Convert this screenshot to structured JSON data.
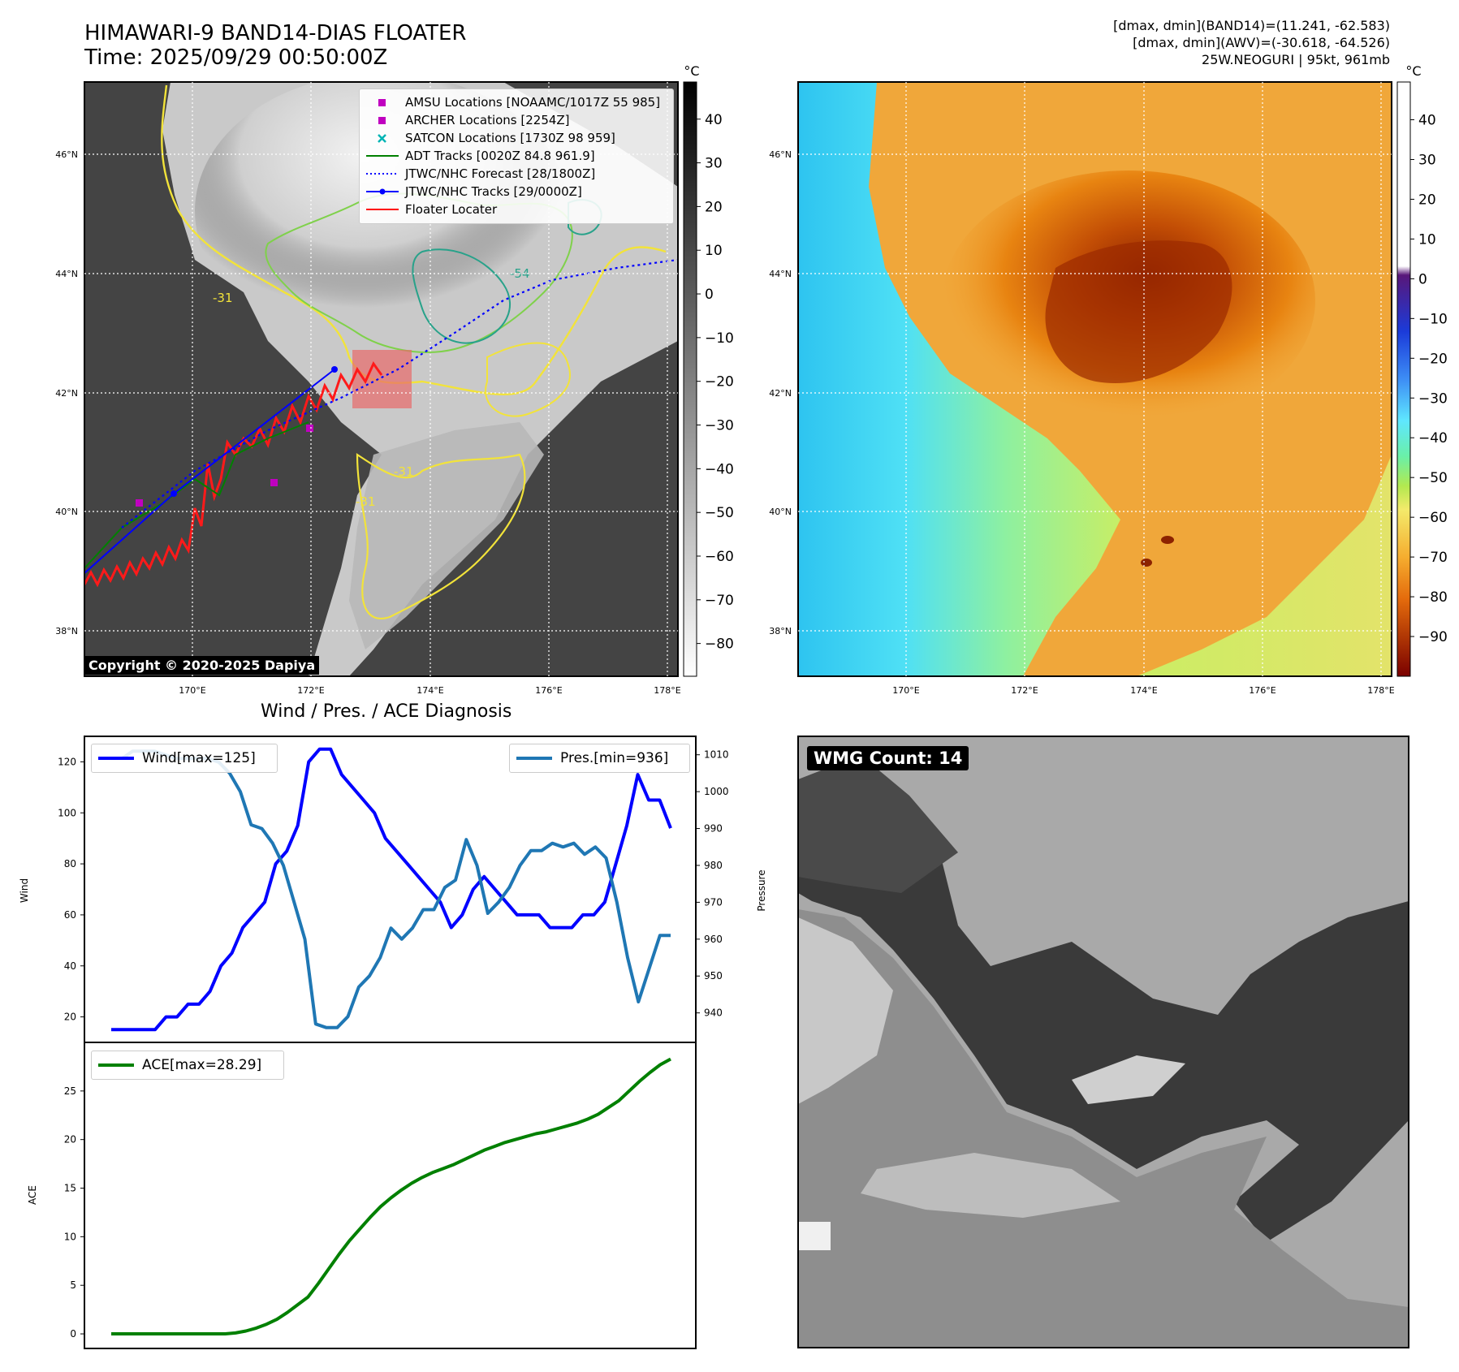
{
  "header": {
    "title_line1": "HIMAWARI-9 BAND14-DIAS FLOATER",
    "title_line2": "Time: 2025/09/29 00:50:00Z",
    "info_line1": "[dmax, dmin](BAND14)=(11.241, -62.583)",
    "info_line2": "[dmax, dmin](AWV)=(-30.618, -64.526)",
    "info_line3": "25W.NEOGURI | 95kt, 961mb"
  },
  "map": {
    "lat_labels": [
      "46°N",
      "44°N",
      "42°N",
      "40°N",
      "38°N"
    ],
    "lon_labels": [
      "170°E",
      "172°E",
      "174°E",
      "176°E",
      "178°E"
    ],
    "colorbar_unit": "°C",
    "contour_labels": [
      "-31",
      "-54",
      "-31",
      "-31"
    ],
    "copyright": "Copyright © 2020-2025 Dapiya"
  },
  "ir_colorbar": {
    "ticks": [
      "40",
      "30",
      "20",
      "10",
      "0",
      "−10",
      "−20",
      "−30",
      "−40",
      "−50",
      "−60",
      "−70",
      "−80"
    ]
  },
  "awv_colorbar": {
    "ticks": [
      "40",
      "30",
      "20",
      "10",
      "0",
      "−10",
      "−20",
      "−30",
      "−40",
      "−50",
      "−60",
      "−70",
      "−80",
      "−90"
    ],
    "colors": [
      "#ffffff",
      "#58177a",
      "#1b3bd9",
      "#3d8df5",
      "#5fe7ff",
      "#6af0a8",
      "#b3e94f",
      "#f4ea6b",
      "#f5ad2f",
      "#e46b0c",
      "#b33a05",
      "#7a0000"
    ]
  },
  "legend": {
    "items": [
      {
        "label": "AMSU Locations [NOAAMC/1017Z 55 985]",
        "color": "#c000c0",
        "marker": "square"
      },
      {
        "label": "ARCHER Locations [2254Z]",
        "color": "#c000c0",
        "marker": "square"
      },
      {
        "label": "SATCON Locations [1730Z 98 959]",
        "color": "#00b4b4",
        "marker": "x"
      },
      {
        "label": "ADT Tracks [0020Z 84.8 961.9]",
        "color": "#008000",
        "marker": "line"
      },
      {
        "label": "JTWC/NHC Forecast [28/1800Z]",
        "color": "#0000ff",
        "marker": "dotted"
      },
      {
        "label": "JTWC/NHC Tracks [29/0000Z]",
        "color": "#0000ff",
        "marker": "line-dot"
      },
      {
        "label": "Floater Locater",
        "color": "#ff0000",
        "marker": "line"
      }
    ]
  },
  "diagnosis": {
    "title": "Wind / Pres. / ACE Diagnosis",
    "wind_label": "Wind",
    "pres_label": "Pressure",
    "ace_label": "ACE",
    "wind_legend": "Wind[max=125]",
    "pres_legend": "Pres.[min=936]",
    "ace_legend": "ACE[max=28.29]",
    "wind_color": "#0000ff",
    "pres_color": "#1f77b4",
    "ace_color": "#008000"
  },
  "wmg": {
    "label": "WMG Count: 14"
  },
  "chart_data": [
    {
      "type": "line",
      "series": [
        {
          "name": "Wind[max=125]",
          "axis": "left",
          "values": [
            15,
            15,
            15,
            15,
            15,
            20,
            20,
            25,
            25,
            30,
            40,
            45,
            55,
            60,
            65,
            80,
            85,
            95,
            120,
            125,
            125,
            115,
            110,
            105,
            100,
            90,
            85,
            80,
            75,
            70,
            65,
            55,
            60,
            70,
            75,
            70,
            65,
            60,
            60,
            60,
            55,
            55,
            55,
            60,
            60,
            65,
            80,
            95,
            115,
            105,
            105,
            94
          ]
        },
        {
          "name": "Pres.[min=936]",
          "axis": "right",
          "values": [
            1009,
            1009,
            1011,
            1011,
            1011,
            1010,
            1009,
            1009,
            1009,
            1009,
            1008,
            1005,
            1000,
            991,
            990,
            986,
            980,
            970,
            960,
            937,
            936,
            936,
            939,
            947,
            950,
            955,
            963,
            960,
            963,
            968,
            968,
            974,
            976,
            987,
            980,
            967,
            970,
            974,
            980,
            984,
            984,
            986,
            985,
            986,
            983,
            985,
            982,
            970,
            955,
            943,
            952,
            961,
            961
          ]
        }
      ],
      "xlabel": "",
      "ylabel": "Wind",
      "ylabel_right": "Pressure",
      "ylim": [
        10,
        130
      ],
      "ylim_right": [
        932,
        1015
      ],
      "yticks": [
        20,
        40,
        60,
        80,
        100,
        120
      ],
      "yticks_right": [
        940,
        950,
        960,
        970,
        980,
        990,
        1000,
        1010
      ]
    },
    {
      "type": "line",
      "series": [
        {
          "name": "ACE[max=28.29]",
          "values": [
            0,
            0,
            0,
            0,
            0,
            0,
            0,
            0,
            0,
            0,
            0,
            0,
            0.1,
            0.3,
            0.6,
            1.0,
            1.5,
            2.2,
            3.0,
            3.8,
            5.2,
            6.7,
            8.2,
            9.6,
            10.8,
            12.0,
            13.1,
            14.0,
            14.8,
            15.5,
            16.1,
            16.6,
            17.0,
            17.4,
            17.9,
            18.4,
            18.9,
            19.3,
            19.7,
            20.0,
            20.3,
            20.6,
            20.8,
            21.1,
            21.4,
            21.7,
            22.1,
            22.6,
            23.3,
            24.0,
            25.0,
            26.0,
            26.9,
            27.7,
            28.29
          ]
        }
      ],
      "ylabel": "ACE",
      "ylim": [
        -1.5,
        30
      ],
      "yticks": [
        0,
        5,
        10,
        15,
        20,
        25
      ]
    }
  ]
}
